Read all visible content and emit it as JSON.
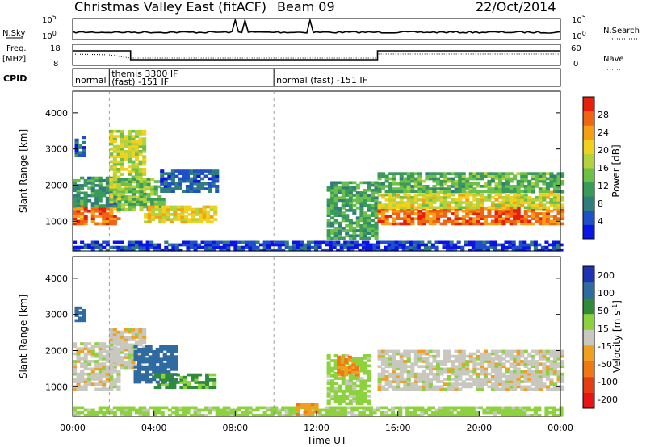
{
  "header": {
    "title": "Christmas Valley East (fitACF)",
    "beam": "Beam 09",
    "date": "22/Oct/2014"
  },
  "side_labels": {
    "nsky": "N.Sky",
    "nsearch": "N.Search",
    "freq": "Freq.",
    "freq_unit": "[MHz]",
    "nave": "Nave",
    "cpid": "CPID"
  },
  "small_axes": {
    "nsky_ticks": [
      "10^5",
      "10^0"
    ],
    "nsearch_ticks": [
      "10^5",
      "10^0"
    ],
    "freq_ticks": [
      "18",
      "8"
    ],
    "nave_ticks": [
      "60",
      "0"
    ]
  },
  "cpid_segments": [
    {
      "label_top": "normal",
      "label_bottom": "",
      "start_h": 0
    },
    {
      "label_top": "themis 3300 IF",
      "label_bottom": "(fast) -151 IF",
      "start_h": 1.8
    },
    {
      "label_top": "normal (fast) -151 IF",
      "label_bottom": "",
      "start_h": 9.9
    }
  ],
  "chart_data": [
    {
      "type": "heatmap",
      "name": "power",
      "xlabel": "",
      "ylabel": "Slant Range [km]",
      "x_unit": "hours UT",
      "xlim": [
        0,
        24
      ],
      "ylim": [
        180,
        4600
      ],
      "yticks": [
        1000,
        2000,
        3000,
        4000
      ],
      "colorbar": {
        "label": "Power [dB]",
        "range": [
          0,
          32
        ],
        "ticks": [
          "4",
          "8",
          "12",
          "16",
          "20",
          "24",
          "28"
        ],
        "colors": [
          "#0a14e6",
          "#1e50c8",
          "#2f7d7d",
          "#3a9a5a",
          "#6cc04a",
          "#b4d23c",
          "#f0d21e",
          "#f5a014",
          "#f06414",
          "#e61e0a"
        ]
      },
      "bands": [
        {
          "t0": 0.0,
          "t1": 2.2,
          "r0": 900,
          "r1": 1400,
          "p": 26
        },
        {
          "t0": 0.0,
          "t1": 2.2,
          "r0": 1400,
          "r1": 2200,
          "p": 10
        },
        {
          "t0": 0.1,
          "t1": 0.6,
          "r0": 2800,
          "r1": 3300,
          "p": 6
        },
        {
          "t0": 1.8,
          "t1": 3.5,
          "r0": 1500,
          "r1": 3500,
          "p": 18
        },
        {
          "t0": 2.2,
          "t1": 4.5,
          "r0": 1300,
          "r1": 2200,
          "p": 14
        },
        {
          "t0": 3.5,
          "t1": 7.0,
          "r0": 950,
          "r1": 1400,
          "p": 20
        },
        {
          "t0": 4.3,
          "t1": 7.0,
          "r0": 1800,
          "r1": 2400,
          "p": 6
        },
        {
          "t0": 0.0,
          "t1": 24.0,
          "r0": 180,
          "r1": 450,
          "p": 4
        },
        {
          "t0": 12.5,
          "t1": 15.0,
          "r0": 500,
          "r1": 2100,
          "p": 12
        },
        {
          "t0": 15.0,
          "t1": 24.0,
          "r0": 900,
          "r1": 1350,
          "p": 27
        },
        {
          "t0": 15.0,
          "t1": 24.0,
          "r0": 1350,
          "r1": 1800,
          "p": 19
        },
        {
          "t0": 15.0,
          "t1": 24.0,
          "r0": 1800,
          "r1": 2300,
          "p": 13
        }
      ]
    },
    {
      "type": "heatmap",
      "name": "velocity",
      "xlabel": "Time UT",
      "ylabel": "Slant Range [km]",
      "x_unit": "hours UT",
      "xlim": [
        0,
        24
      ],
      "ylim": [
        180,
        4600
      ],
      "yticks": [
        1000,
        2000,
        3000,
        4000
      ],
      "xticks": [
        "00:00",
        "04:00",
        "08:00",
        "12:00",
        "16:00",
        "20:00",
        "00:00"
      ],
      "colorbar": {
        "label": "Velocity [m s^-1]",
        "ticks": [
          "200",
          "100",
          "50",
          "15",
          "-15",
          "-50",
          "-100",
          "-200"
        ],
        "colors": [
          "#1e32b4",
          "#2f6aa0",
          "#2f8a3a",
          "#8cd23c",
          "#c8c8c0",
          "#f0a01e",
          "#f07814",
          "#e63c14",
          "#e61414"
        ]
      },
      "bands": [
        {
          "t0": 0.0,
          "t1": 2.2,
          "r0": 900,
          "r1": 2200,
          "v": 0
        },
        {
          "t0": 0.1,
          "t1": 0.6,
          "r0": 2800,
          "r1": 3200,
          "v": 150
        },
        {
          "t0": 1.8,
          "t1": 3.5,
          "r0": 1500,
          "r1": 2600,
          "v": 0
        },
        {
          "t0": 3.0,
          "t1": 5.0,
          "r0": 1100,
          "r1": 2100,
          "v": 150
        },
        {
          "t0": 4.0,
          "t1": 7.0,
          "r0": 950,
          "r1": 1350,
          "v": 60
        },
        {
          "t0": 0.0,
          "t1": 24.0,
          "r0": 180,
          "r1": 420,
          "v": 30
        },
        {
          "t0": 11.0,
          "t1": 12.0,
          "r0": 200,
          "r1": 500,
          "v": -40
        },
        {
          "t0": 12.5,
          "t1": 14.5,
          "r0": 500,
          "r1": 1900,
          "v": 30
        },
        {
          "t0": 13.0,
          "t1": 14.0,
          "r0": 1300,
          "r1": 1800,
          "v": -50
        },
        {
          "t0": 15.0,
          "t1": 24.0,
          "r0": 900,
          "r1": 2000,
          "v": 0
        }
      ]
    }
  ]
}
